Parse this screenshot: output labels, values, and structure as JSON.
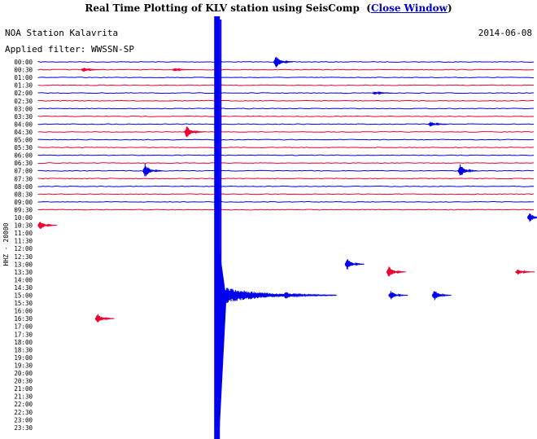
{
  "header": {
    "title": "Real Time Plotting of KLV station using SeisComp",
    "open_paren": "(",
    "close_label": "Close Window",
    "close_paren": ")"
  },
  "station": "NOA Station Kalavrita",
  "date": "2014-06-08",
  "filter_text": "Applied filter: WWSSN-SP",
  "colors": {
    "trace_a": "#0000ee",
    "trace_b": "#ee0033",
    "text": "#000000",
    "link": "#0000cc",
    "background": "#ffffff"
  },
  "chart_data": {
    "type": "line",
    "ylabel": "HHZ - 20000",
    "row_interval_minutes": 30,
    "rows_with_data": 20,
    "rows": [
      {
        "time": "00:00",
        "color": "blue"
      },
      {
        "time": "00:30",
        "color": "red"
      },
      {
        "time": "01:00",
        "color": "blue"
      },
      {
        "time": "01:30",
        "color": "red"
      },
      {
        "time": "02:00",
        "color": "blue"
      },
      {
        "time": "02:30",
        "color": "red"
      },
      {
        "time": "03:00",
        "color": "blue"
      },
      {
        "time": "03:30",
        "color": "red"
      },
      {
        "time": "04:00",
        "color": "blue"
      },
      {
        "time": "04:30",
        "color": "red"
      },
      {
        "time": "05:00",
        "color": "blue"
      },
      {
        "time": "05:30",
        "color": "red"
      },
      {
        "time": "06:00",
        "color": "blue"
      },
      {
        "time": "06:30",
        "color": "red"
      },
      {
        "time": "07:00",
        "color": "blue"
      },
      {
        "time": "07:30",
        "color": "red"
      },
      {
        "time": "08:00",
        "color": "blue"
      },
      {
        "time": "08:30",
        "color": "red"
      },
      {
        "time": "09:00",
        "color": "blue"
      },
      {
        "time": "09:30",
        "color": "red"
      },
      {
        "time": "10:00",
        "color": "blue"
      },
      {
        "time": "10:30",
        "color": "red"
      },
      {
        "time": "11:00",
        "color": "blue"
      },
      {
        "time": "11:30",
        "color": "red"
      },
      {
        "time": "12:00",
        "color": "blue"
      },
      {
        "time": "12:30",
        "color": "red"
      },
      {
        "time": "13:00",
        "color": "blue"
      },
      {
        "time": "13:30",
        "color": "red"
      },
      {
        "time": "14:00",
        "color": "blue"
      },
      {
        "time": "14:30",
        "color": "red"
      },
      {
        "time": "15:00",
        "color": "blue"
      },
      {
        "time": "15:30",
        "color": "red"
      },
      {
        "time": "16:00",
        "color": "blue"
      },
      {
        "time": "16:30",
        "color": "red"
      },
      {
        "time": "17:00",
        "color": "blue"
      },
      {
        "time": "17:30",
        "color": "red"
      },
      {
        "time": "18:00",
        "color": "blue"
      },
      {
        "time": "18:30",
        "color": "red"
      },
      {
        "time": "19:00",
        "color": "blue"
      },
      {
        "time": "19:30",
        "color": "red"
      },
      {
        "time": "20:00",
        "color": "blue"
      },
      {
        "time": "20:30",
        "color": "red"
      },
      {
        "time": "21:00",
        "color": "blue"
      },
      {
        "time": "21:30",
        "color": "red"
      },
      {
        "time": "22:00",
        "color": "blue"
      },
      {
        "time": "22:30",
        "color": "red"
      },
      {
        "time": "23:00",
        "color": "blue"
      },
      {
        "time": "23:30",
        "color": "red"
      }
    ],
    "events": [
      {
        "row": "00:00",
        "minute": 12.0,
        "amp": 1.3
      },
      {
        "row": "00:30",
        "minute": 2.3,
        "amp": 0.4
      },
      {
        "row": "00:30",
        "minute": 6.9,
        "amp": 0.3
      },
      {
        "row": "02:00",
        "minute": 17.0,
        "amp": 0.3
      },
      {
        "row": "04:00",
        "minute": 19.8,
        "amp": 0.5
      },
      {
        "row": "04:30",
        "minute": 7.5,
        "amp": 1.1
      },
      {
        "row": "07:00",
        "minute": 5.4,
        "amp": 1.3
      },
      {
        "row": "07:00",
        "minute": 21.3,
        "amp": 1.2
      },
      {
        "row": "10:00",
        "minute": 24.8,
        "amp": 0.9
      },
      {
        "row": "10:30",
        "minute": 0.1,
        "amp": 0.8
      },
      {
        "row": "13:00",
        "minute": 15.6,
        "amp": 1.1
      },
      {
        "row": "13:30",
        "minute": 17.7,
        "amp": 1.1
      },
      {
        "row": "13:30",
        "minute": 24.2,
        "amp": 0.5
      },
      {
        "row": "15:00",
        "minute": 12.5,
        "amp": 0.8
      },
      {
        "row": "15:00",
        "minute": 17.8,
        "amp": 0.8
      },
      {
        "row": "15:00",
        "minute": 20.0,
        "amp": 1.0
      },
      {
        "row": "16:30",
        "minute": 3.0,
        "amp": 0.9
      }
    ],
    "main_event": {
      "minute": 9.0,
      "from_row": "00:00",
      "to_row": "23:30",
      "coda_end_row": "15:00"
    }
  }
}
